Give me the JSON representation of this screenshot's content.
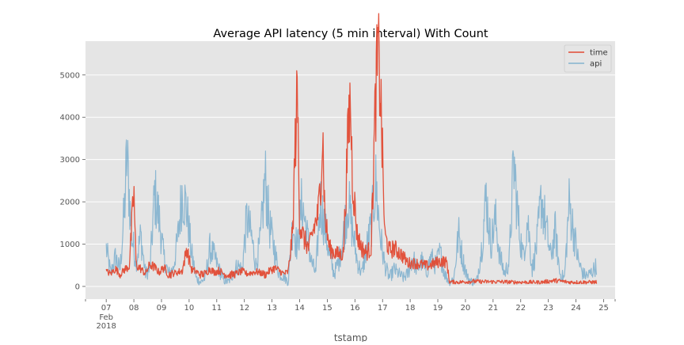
{
  "chart_data": {
    "type": "line",
    "title": "Average API latency (5 min interval) With Count",
    "xlabel": "tstamp",
    "ylabel": "",
    "ylim": [
      -300,
      5800
    ],
    "xlim": [
      "2018-02-06T06:00",
      "2018-02-25T10:00"
    ],
    "grid": true,
    "legend": "top-right",
    "x_tick_labels": [
      {
        "x": "2018-02-07",
        "label": "07",
        "sub": [
          "Feb",
          "2018"
        ]
      },
      {
        "x": "2018-02-08",
        "label": "08"
      },
      {
        "x": "2018-02-09",
        "label": "09"
      },
      {
        "x": "2018-02-10",
        "label": "10"
      },
      {
        "x": "2018-02-11",
        "label": "11"
      },
      {
        "x": "2018-02-12",
        "label": "12"
      },
      {
        "x": "2018-02-13",
        "label": "13"
      },
      {
        "x": "2018-02-14",
        "label": "14"
      },
      {
        "x": "2018-02-15",
        "label": "15"
      },
      {
        "x": "2018-02-16",
        "label": "16"
      },
      {
        "x": "2018-02-17",
        "label": "17"
      },
      {
        "x": "2018-02-18",
        "label": "18"
      },
      {
        "x": "2018-02-19",
        "label": "19"
      },
      {
        "x": "2018-02-20",
        "label": "20"
      },
      {
        "x": "2018-02-21",
        "label": "21"
      },
      {
        "x": "2018-02-22",
        "label": "22"
      },
      {
        "x": "2018-02-23",
        "label": "23"
      },
      {
        "x": "2018-02-24",
        "label": "24"
      },
      {
        "x": "2018-02-25",
        "label": "25"
      }
    ],
    "y_ticks": [
      0,
      1000,
      2000,
      3000,
      4000,
      5000
    ],
    "series": [
      {
        "name": "time",
        "color": "#e24a33",
        "points": [
          [
            "2018-02-07T00:00",
            350
          ],
          [
            "2018-02-07T04:00",
            300
          ],
          [
            "2018-02-07T08:00",
            420
          ],
          [
            "2018-02-07T12:00",
            280
          ],
          [
            "2018-02-07T16:00",
            400
          ],
          [
            "2018-02-07T20:00",
            480
          ],
          [
            "2018-02-08T00:00",
            2250
          ],
          [
            "2018-02-08T02:00",
            500
          ],
          [
            "2018-02-08T06:00",
            420
          ],
          [
            "2018-02-08T10:00",
            300
          ],
          [
            "2018-02-08T14:00",
            520
          ],
          [
            "2018-02-08T18:00",
            450
          ],
          [
            "2018-02-08T22:00",
            330
          ],
          [
            "2018-02-09T02:00",
            450
          ],
          [
            "2018-02-09T06:00",
            280
          ],
          [
            "2018-02-09T10:00",
            300
          ],
          [
            "2018-02-09T14:00",
            340
          ],
          [
            "2018-02-09T18:00",
            360
          ],
          [
            "2018-02-09T22:00",
            900
          ],
          [
            "2018-02-10T02:00",
            400
          ],
          [
            "2018-02-10T06:00",
            350
          ],
          [
            "2018-02-10T10:00",
            280
          ],
          [
            "2018-02-10T14:00",
            300
          ],
          [
            "2018-02-10T18:00",
            420
          ],
          [
            "2018-02-10T22:00",
            330
          ],
          [
            "2018-02-11T02:00",
            380
          ],
          [
            "2018-02-11T06:00",
            300
          ],
          [
            "2018-02-11T10:00",
            270
          ],
          [
            "2018-02-11T14:00",
            280
          ],
          [
            "2018-02-11T18:00",
            320
          ],
          [
            "2018-02-11T22:00",
            360
          ],
          [
            "2018-02-12T02:00",
            300
          ],
          [
            "2018-02-12T06:00",
            320
          ],
          [
            "2018-02-12T10:00",
            350
          ],
          [
            "2018-02-12T14:00",
            320
          ],
          [
            "2018-02-12T18:00",
            280
          ],
          [
            "2018-02-12T22:00",
            370
          ],
          [
            "2018-02-13T02:00",
            430
          ],
          [
            "2018-02-13T06:00",
            380
          ],
          [
            "2018-02-13T10:00",
            300
          ],
          [
            "2018-02-13T14:00",
            340
          ],
          [
            "2018-02-13T18:00",
            1300
          ],
          [
            "2018-02-13T20:00",
            3250
          ],
          [
            "2018-02-13T22:00",
            4550
          ],
          [
            "2018-02-14T00:00",
            1500
          ],
          [
            "2018-02-14T04:00",
            1100
          ],
          [
            "2018-02-14T08:00",
            900
          ],
          [
            "2018-02-14T12:00",
            1350
          ],
          [
            "2018-02-14T16:00",
            1700
          ],
          [
            "2018-02-14T18:00",
            2400
          ],
          [
            "2018-02-14T20:00",
            3650
          ],
          [
            "2018-02-14T22:00",
            1600
          ],
          [
            "2018-02-15T02:00",
            900
          ],
          [
            "2018-02-15T06:00",
            800
          ],
          [
            "2018-02-15T10:00",
            750
          ],
          [
            "2018-02-15T14:00",
            780
          ],
          [
            "2018-02-15T18:00",
            3550
          ],
          [
            "2018-02-15T20:00",
            4450
          ],
          [
            "2018-02-15T22:00",
            2500
          ],
          [
            "2018-02-16T02:00",
            1200
          ],
          [
            "2018-02-16T06:00",
            900
          ],
          [
            "2018-02-16T10:00",
            800
          ],
          [
            "2018-02-16T14:00",
            900
          ],
          [
            "2018-02-16T18:00",
            4450
          ],
          [
            "2018-02-16T20:00",
            5500
          ],
          [
            "2018-02-16T22:00",
            4800
          ],
          [
            "2018-02-17T02:00",
            1200
          ],
          [
            "2018-02-17T06:00",
            850
          ],
          [
            "2018-02-17T10:00",
            900
          ],
          [
            "2018-02-17T14:00",
            820
          ],
          [
            "2018-02-17T18:00",
            700
          ],
          [
            "2018-02-17T22:00",
            560
          ],
          [
            "2018-02-18T04:00",
            550
          ],
          [
            "2018-02-18T10:00",
            520
          ],
          [
            "2018-02-18T16:00",
            480
          ],
          [
            "2018-02-18T22:00",
            560
          ],
          [
            "2018-02-19T04:00",
            600
          ],
          [
            "2018-02-19T08:00",
            560
          ],
          [
            "2018-02-19T10:00",
            110
          ],
          [
            "2018-02-19T18:00",
            100
          ],
          [
            "2018-02-20T06:00",
            120
          ],
          [
            "2018-02-20T18:00",
            110
          ],
          [
            "2018-02-21T06:00",
            110
          ],
          [
            "2018-02-21T18:00",
            100
          ],
          [
            "2018-02-22T06:00",
            100
          ],
          [
            "2018-02-22T18:00",
            100
          ],
          [
            "2018-02-23T06:00",
            140
          ],
          [
            "2018-02-23T18:00",
            100
          ],
          [
            "2018-02-24T06:00",
            100
          ],
          [
            "2018-02-24T18:00",
            100
          ]
        ]
      },
      {
        "name": "api",
        "color": "#348abd",
        "points": [
          [
            "2018-02-07T00:00",
            900
          ],
          [
            "2018-02-07T04:00",
            300
          ],
          [
            "2018-02-07T08:00",
            700
          ],
          [
            "2018-02-07T12:00",
            400
          ],
          [
            "2018-02-07T16:00",
            1900
          ],
          [
            "2018-02-07T18:00",
            3100
          ],
          [
            "2018-02-07T22:00",
            1200
          ],
          [
            "2018-02-08T02:00",
            600
          ],
          [
            "2018-02-08T06:00",
            1200
          ],
          [
            "2018-02-08T10:00",
            300
          ],
          [
            "2018-02-08T14:00",
            400
          ],
          [
            "2018-02-08T18:00",
            2200
          ],
          [
            "2018-02-08T22:00",
            1600
          ],
          [
            "2018-02-09T02:00",
            700
          ],
          [
            "2018-02-09T06:00",
            300
          ],
          [
            "2018-02-09T10:00",
            400
          ],
          [
            "2018-02-09T14:00",
            1100
          ],
          [
            "2018-02-09T18:00",
            2250
          ],
          [
            "2018-02-09T22:00",
            1800
          ],
          [
            "2018-02-10T02:00",
            800
          ],
          [
            "2018-02-10T06:00",
            200
          ],
          [
            "2018-02-10T10:00",
            100
          ],
          [
            "2018-02-10T14:00",
            200
          ],
          [
            "2018-02-10T18:00",
            900
          ],
          [
            "2018-02-10T22:00",
            700
          ],
          [
            "2018-02-11T02:00",
            400
          ],
          [
            "2018-02-11T06:00",
            150
          ],
          [
            "2018-02-11T10:00",
            100
          ],
          [
            "2018-02-11T14:00",
            300
          ],
          [
            "2018-02-11T18:00",
            500
          ],
          [
            "2018-02-11T22:00",
            400
          ],
          [
            "2018-02-12T02:00",
            1600
          ],
          [
            "2018-02-12T06:00",
            1200
          ],
          [
            "2018-02-12T10:00",
            500
          ],
          [
            "2018-02-12T14:00",
            1100
          ],
          [
            "2018-02-12T18:00",
            2550
          ],
          [
            "2018-02-12T22:00",
            1400
          ],
          [
            "2018-02-13T02:00",
            900
          ],
          [
            "2018-02-13T06:00",
            300
          ],
          [
            "2018-02-13T10:00",
            250
          ],
          [
            "2018-02-13T14:00",
            100
          ],
          [
            "2018-02-13T18:00",
            1500
          ],
          [
            "2018-02-13T22:00",
            900
          ],
          [
            "2018-02-14T02:00",
            2000
          ],
          [
            "2018-02-14T06:00",
            1300
          ],
          [
            "2018-02-14T10:00",
            600
          ],
          [
            "2018-02-14T14:00",
            300
          ],
          [
            "2018-02-14T18:00",
            2000
          ],
          [
            "2018-02-14T22:00",
            1400
          ],
          [
            "2018-02-15T02:00",
            700
          ],
          [
            "2018-02-15T06:00",
            300
          ],
          [
            "2018-02-15T10:00",
            600
          ],
          [
            "2018-02-15T14:00",
            1200
          ],
          [
            "2018-02-15T18:00",
            2050
          ],
          [
            "2018-02-15T22:00",
            1300
          ],
          [
            "2018-02-16T02:00",
            600
          ],
          [
            "2018-02-16T06:00",
            300
          ],
          [
            "2018-02-16T10:00",
            900
          ],
          [
            "2018-02-16T14:00",
            1400
          ],
          [
            "2018-02-16T18:00",
            2450
          ],
          [
            "2018-02-16T22:00",
            1200
          ],
          [
            "2018-02-17T02:00",
            500
          ],
          [
            "2018-02-17T06:00",
            200
          ],
          [
            "2018-02-17T10:00",
            400
          ],
          [
            "2018-02-17T14:00",
            300
          ],
          [
            "2018-02-17T18:00",
            200
          ],
          [
            "2018-02-17T22:00",
            300
          ],
          [
            "2018-02-18T02:00",
            700
          ],
          [
            "2018-02-18T06:00",
            400
          ],
          [
            "2018-02-18T10:00",
            600
          ],
          [
            "2018-02-18T14:00",
            300
          ],
          [
            "2018-02-18T18:00",
            700
          ],
          [
            "2018-02-18T22:00",
            500
          ],
          [
            "2018-02-19T02:00",
            800
          ],
          [
            "2018-02-19T06:00",
            300
          ],
          [
            "2018-02-19T10:00",
            100
          ],
          [
            "2018-02-19T14:00",
            200
          ],
          [
            "2018-02-19T18:00",
            1250
          ],
          [
            "2018-02-19T22:00",
            600
          ],
          [
            "2018-02-20T02:00",
            200
          ],
          [
            "2018-02-20T06:00",
            100
          ],
          [
            "2018-02-20T10:00",
            150
          ],
          [
            "2018-02-20T14:00",
            900
          ],
          [
            "2018-02-20T18:00",
            2150
          ],
          [
            "2018-02-20T22:00",
            1000
          ],
          [
            "2018-02-21T02:00",
            1600
          ],
          [
            "2018-02-21T06:00",
            700
          ],
          [
            "2018-02-21T10:00",
            300
          ],
          [
            "2018-02-21T14:00",
            600
          ],
          [
            "2018-02-21T18:00",
            2950
          ],
          [
            "2018-02-21T22:00",
            1500
          ],
          [
            "2018-02-22T02:00",
            700
          ],
          [
            "2018-02-22T06:00",
            1600
          ],
          [
            "2018-02-22T10:00",
            400
          ],
          [
            "2018-02-22T14:00",
            1000
          ],
          [
            "2018-02-22T18:00",
            2100
          ],
          [
            "2018-02-22T22:00",
            1400
          ],
          [
            "2018-02-23T02:00",
            700
          ],
          [
            "2018-02-23T06:00",
            1300
          ],
          [
            "2018-02-23T10:00",
            300
          ],
          [
            "2018-02-23T14:00",
            200
          ],
          [
            "2018-02-23T18:00",
            1950
          ],
          [
            "2018-02-23T22:00",
            1300
          ],
          [
            "2018-02-24T02:00",
            600
          ],
          [
            "2018-02-24T06:00",
            300
          ],
          [
            "2018-02-24T10:00",
            250
          ],
          [
            "2018-02-24T14:00",
            350
          ],
          [
            "2018-02-24T18:00",
            500
          ]
        ]
      }
    ]
  }
}
